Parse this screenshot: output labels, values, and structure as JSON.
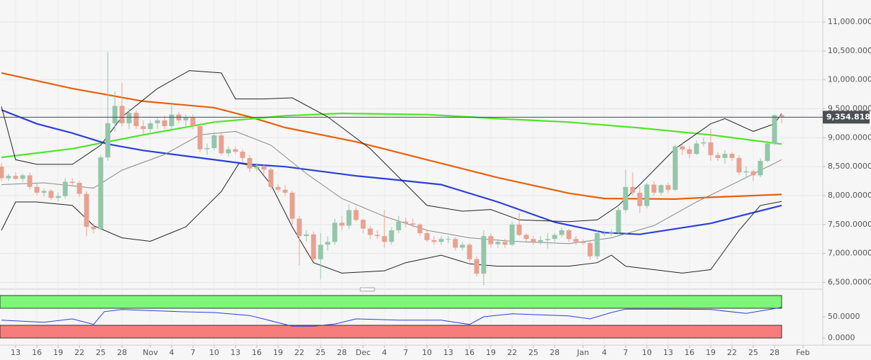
{
  "chart_data": {
    "type": "candlestick",
    "xlim": [
      -0.2,
      115.8
    ],
    "ylim": [
      6420,
      11380
    ],
    "yticks": [
      {
        "value": 6500,
        "label": "6,500.0000"
      },
      {
        "value": 7000,
        "label": "7,000.0000"
      },
      {
        "value": 7500,
        "label": "7,500.0000"
      },
      {
        "value": 8000,
        "label": "8,000.0000"
      },
      {
        "value": 8500,
        "label": "8,500.0000"
      },
      {
        "value": 9000,
        "label": "9,000.0000"
      },
      {
        "value": 9500,
        "label": "9,500.0000"
      },
      {
        "value": 10000,
        "label": "10,000.0000"
      },
      {
        "value": 10500,
        "label": "10,500.0000"
      },
      {
        "value": 11000,
        "label": "11,000.0000"
      }
    ],
    "xticks": [
      {
        "value": 2,
        "label": "13"
      },
      {
        "value": 5,
        "label": "16"
      },
      {
        "value": 8,
        "label": "19"
      },
      {
        "value": 11,
        "label": "22"
      },
      {
        "value": 14,
        "label": "25"
      },
      {
        "value": 17,
        "label": "28"
      },
      {
        "value": 21,
        "label": "Nov"
      },
      {
        "value": 24,
        "label": "4"
      },
      {
        "value": 27,
        "label": "7"
      },
      {
        "value": 30,
        "label": "10"
      },
      {
        "value": 33,
        "label": "13"
      },
      {
        "value": 36,
        "label": "16"
      },
      {
        "value": 39,
        "label": "19"
      },
      {
        "value": 42,
        "label": "22"
      },
      {
        "value": 45,
        "label": "25"
      },
      {
        "value": 48,
        "label": "28"
      },
      {
        "value": 51,
        "label": "Dec"
      },
      {
        "value": 54,
        "label": "4"
      },
      {
        "value": 57,
        "label": "7"
      },
      {
        "value": 60,
        "label": "10"
      },
      {
        "value": 63,
        "label": "13"
      },
      {
        "value": 66,
        "label": "16"
      },
      {
        "value": 69,
        "label": "19"
      },
      {
        "value": 72,
        "label": "22"
      },
      {
        "value": 75,
        "label": "25"
      },
      {
        "value": 78,
        "label": "28"
      },
      {
        "value": 82,
        "label": "Jan"
      },
      {
        "value": 85,
        "label": "4"
      },
      {
        "value": 88,
        "label": "7"
      },
      {
        "value": 91,
        "label": "10"
      },
      {
        "value": 94,
        "label": "13"
      },
      {
        "value": 97,
        "label": "16"
      },
      {
        "value": 100,
        "label": "19"
      },
      {
        "value": 103,
        "label": "22"
      },
      {
        "value": 106,
        "label": "25"
      },
      {
        "value": 109,
        "label": "28"
      },
      {
        "value": 113,
        "label": "Feb"
      }
    ],
    "up_color": "#93c6ab",
    "down_color": "#e8a190",
    "grid": true,
    "last_price": {
      "value": 9354.8185,
      "label": "9,354.8185"
    },
    "ohlc": [
      [
        8500,
        8560,
        8250,
        8300
      ],
      [
        8300,
        8380,
        8250,
        8340
      ],
      [
        8340,
        8400,
        8270,
        8290
      ],
      [
        8290,
        8380,
        8240,
        8350
      ],
      [
        8350,
        8400,
        8100,
        8150
      ],
      [
        8150,
        8200,
        8000,
        8050
      ],
      [
        8050,
        8120,
        7980,
        8080
      ],
      [
        8080,
        8110,
        7920,
        7960
      ],
      [
        7960,
        8050,
        7900,
        7990
      ],
      [
        7990,
        8300,
        7950,
        8240
      ],
      [
        8240,
        8300,
        8180,
        8220
      ],
      [
        8220,
        8250,
        7980,
        8030
      ],
      [
        8030,
        8080,
        7300,
        7460
      ],
      [
        7460,
        7520,
        7350,
        7420
      ],
      [
        7420,
        8700,
        7400,
        8660
      ],
      [
        8660,
        10480,
        8600,
        9250
      ],
      [
        9250,
        9800,
        9100,
        9550
      ],
      [
        9550,
        9950,
        9200,
        9250
      ],
      [
        9250,
        9500,
        9150,
        9430
      ],
      [
        9430,
        9470,
        9150,
        9200
      ],
      [
        9200,
        9300,
        9050,
        9150
      ],
      [
        9150,
        9300,
        9100,
        9250
      ],
      [
        9250,
        9350,
        9150,
        9300
      ],
      [
        9300,
        9380,
        9150,
        9200
      ],
      [
        9200,
        9560,
        9150,
        9400
      ],
      [
        9400,
        9450,
        9250,
        9300
      ],
      [
        9300,
        9400,
        9200,
        9350
      ],
      [
        9350,
        9400,
        9150,
        9200
      ],
      [
        9200,
        9250,
        8750,
        8800
      ],
      [
        8800,
        8900,
        8700,
        8820
      ],
      [
        8820,
        9100,
        8780,
        9040
      ],
      [
        9040,
        9100,
        8700,
        8730
      ],
      [
        8730,
        8850,
        8680,
        8800
      ],
      [
        8800,
        8850,
        8720,
        8760
      ],
      [
        8760,
        8800,
        8580,
        8650
      ],
      [
        8650,
        8700,
        8400,
        8470
      ],
      [
        8470,
        8560,
        8420,
        8500
      ],
      [
        8500,
        8530,
        8380,
        8450
      ],
      [
        8450,
        8480,
        8100,
        8150
      ],
      [
        8150,
        8200,
        8050,
        8100
      ],
      [
        8100,
        8180,
        8000,
        8050
      ],
      [
        8050,
        8080,
        7500,
        7600
      ],
      [
        7600,
        7650,
        6800,
        7300
      ],
      [
        7300,
        7400,
        7200,
        7330
      ],
      [
        7330,
        7380,
        6850,
        6900
      ],
      [
        6900,
        7350,
        6550,
        7150
      ],
      [
        7150,
        7300,
        7050,
        7200
      ],
      [
        7200,
        7600,
        7150,
        7530
      ],
      [
        7530,
        7650,
        7400,
        7480
      ],
      [
        7480,
        7850,
        7420,
        7750
      ],
      [
        7750,
        7800,
        7550,
        7580
      ],
      [
        7580,
        7600,
        7350,
        7430
      ],
      [
        7430,
        7480,
        7250,
        7320
      ],
      [
        7320,
        7400,
        7250,
        7300
      ],
      [
        7300,
        7750,
        7100,
        7200
      ],
      [
        7200,
        7450,
        7150,
        7400
      ],
      [
        7400,
        7650,
        7350,
        7550
      ],
      [
        7550,
        7620,
        7450,
        7520
      ],
      [
        7520,
        7600,
        7450,
        7500
      ],
      [
        7500,
        7520,
        7300,
        7350
      ],
      [
        7350,
        7400,
        7200,
        7230
      ],
      [
        7230,
        7300,
        7150,
        7200
      ],
      [
        7200,
        7300,
        7150,
        7250
      ],
      [
        7250,
        7300,
        7180,
        7250
      ],
      [
        7250,
        7280,
        7050,
        7100
      ],
      [
        7100,
        7200,
        7050,
        7150
      ],
      [
        7150,
        7180,
        6850,
        6900
      ],
      [
        6900,
        6950,
        6600,
        6650
      ],
      [
        6650,
        7400,
        6450,
        7300
      ],
      [
        7300,
        7350,
        7100,
        7160
      ],
      [
        7160,
        7250,
        7100,
        7200
      ],
      [
        7200,
        7250,
        7100,
        7150
      ],
      [
        7150,
        7550,
        7130,
        7500
      ],
      [
        7500,
        7700,
        7300,
        7320
      ],
      [
        7320,
        7350,
        7200,
        7250
      ],
      [
        7250,
        7300,
        7150,
        7200
      ],
      [
        7200,
        7300,
        7150,
        7230
      ],
      [
        7230,
        7350,
        7080,
        7250
      ],
      [
        7250,
        7350,
        7200,
        7320
      ],
      [
        7320,
        7450,
        7280,
        7400
      ],
      [
        7400,
        7420,
        7200,
        7250
      ],
      [
        7250,
        7300,
        7150,
        7200
      ],
      [
        7200,
        7250,
        7150,
        7180
      ],
      [
        7180,
        7220,
        6900,
        6950
      ],
      [
        6950,
        7400,
        6900,
        7350
      ],
      [
        7350,
        7400,
        7300,
        7350
      ],
      [
        7350,
        7420,
        7300,
        7360
      ],
      [
        7360,
        7800,
        7330,
        7750
      ],
      [
        7750,
        8450,
        7700,
        8150
      ],
      [
        8150,
        8400,
        8000,
        8050
      ],
      [
        8050,
        8150,
        7700,
        7820
      ],
      [
        7820,
        8220,
        7780,
        8190
      ],
      [
        8190,
        8250,
        8000,
        8050
      ],
      [
        8050,
        8200,
        8000,
        8180
      ],
      [
        8180,
        8220,
        8050,
        8100
      ],
      [
        8100,
        8880,
        8080,
        8850
      ],
      [
        8850,
        8900,
        8700,
        8800
      ],
      [
        8800,
        8850,
        8650,
        8720
      ],
      [
        8720,
        8950,
        8700,
        8900
      ],
      [
        8900,
        9000,
        8850,
        8920
      ],
      [
        8920,
        9150,
        8600,
        8700
      ],
      [
        8700,
        8750,
        8600,
        8650
      ],
      [
        8650,
        8780,
        8550,
        8720
      ],
      [
        8720,
        8750,
        8600,
        8650
      ],
      [
        8650,
        8700,
        8350,
        8400
      ],
      [
        8400,
        8500,
        8300,
        8420
      ],
      [
        8420,
        8450,
        8250,
        8350
      ],
      [
        8350,
        8650,
        8320,
        8600
      ],
      [
        8600,
        8950,
        8580,
        8900
      ],
      [
        8900,
        9400,
        8870,
        9390
      ],
      [
        9390,
        9420,
        9250,
        9354.8185
      ]
    ],
    "lines": [
      {
        "color": "#e8600c",
        "width": 2.2,
        "x": [
          0,
          10,
          20,
          30,
          35,
          40,
          50,
          60,
          70,
          80,
          85,
          95,
          100,
          110
        ],
        "values": [
          10120,
          9850,
          9630,
          9520,
          9360,
          9175,
          8930,
          8620,
          8310,
          8040,
          7950,
          7940,
          7970,
          8020
        ]
      },
      {
        "color": "#4ee52a",
        "width": 2.2,
        "x": [
          0,
          10,
          20,
          30,
          40,
          48,
          60,
          70,
          80,
          90,
          100,
          110
        ],
        "values": [
          8660,
          8810,
          9050,
          9270,
          9380,
          9420,
          9400,
          9330,
          9270,
          9170,
          9050,
          8890
        ]
      },
      {
        "color": "#2a3fd8",
        "width": 2.2,
        "x": [
          0,
          5,
          10,
          15,
          20,
          30,
          35,
          40,
          50,
          55,
          62,
          70,
          78,
          85,
          90,
          100,
          110
        ],
        "values": [
          9480,
          9240,
          9080,
          8890,
          8780,
          8620,
          8540,
          8500,
          8340,
          8280,
          8190,
          7890,
          7540,
          7360,
          7330,
          7520,
          7830
        ]
      },
      {
        "color": "#222222",
        "width": 1,
        "x": [
          0,
          2,
          5,
          10,
          14,
          17,
          22,
          26.5,
          31,
          33,
          37,
          41,
          46,
          52,
          56,
          60,
          65,
          69,
          73,
          80,
          84,
          87,
          90,
          95,
          100,
          102,
          106,
          109,
          110
        ],
        "values": [
          9540,
          8620,
          8540,
          8540,
          8870,
          9360,
          9850,
          10160,
          10120,
          9670,
          9670,
          9690,
          9360,
          8810,
          8320,
          7830,
          7730,
          7760,
          7580,
          7550,
          7580,
          7830,
          8190,
          8810,
          9240,
          9330,
          9110,
          9240,
          9420
        ]
      },
      {
        "color": "#222222",
        "width": 1,
        "x": [
          0,
          2,
          5,
          10,
          13,
          17,
          21,
          26,
          31,
          33.5,
          36,
          38,
          41,
          44,
          48,
          54,
          57,
          62,
          66,
          70,
          80,
          84,
          86,
          88,
          92,
          96,
          100,
          104,
          107,
          110
        ],
        "values": [
          7400,
          7890,
          7890,
          7830,
          7480,
          7270,
          7210,
          7460,
          8070,
          8560,
          8500,
          8190,
          7460,
          6840,
          6660,
          6700,
          6840,
          6970,
          6820,
          6780,
          6780,
          6840,
          6970,
          6780,
          6720,
          6660,
          6720,
          7400,
          7830,
          7900
        ]
      },
      {
        "color": "#888888",
        "width": 1,
        "x": [
          0,
          6,
          13,
          17,
          23,
          28,
          33,
          38,
          43,
          48,
          54,
          60,
          66,
          72,
          80,
          86,
          92,
          98,
          104,
          110
        ],
        "values": [
          8190,
          8220,
          8130,
          8440,
          8710,
          9050,
          9110,
          8870,
          8380,
          7950,
          7640,
          7400,
          7270,
          7210,
          7170,
          7270,
          7480,
          7890,
          8250,
          8620
        ]
      }
    ],
    "rsi": {
      "ylim": [
        0,
        100
      ],
      "yticks": [
        {
          "value": 50,
          "label": "50.0000"
        },
        {
          "value": 0,
          "label": "0.0000"
        }
      ],
      "bands": [
        {
          "range": [
            70,
            100
          ],
          "color": "#7ff57a"
        },
        {
          "range": [
            0,
            30
          ],
          "color": "#f77d7d"
        }
      ],
      "color": "#2a3fd8",
      "x": [
        0,
        6,
        10,
        13,
        14.5,
        17,
        25,
        30,
        35,
        41,
        44,
        47,
        50,
        56,
        62,
        66,
        68,
        72,
        80,
        83,
        86,
        88,
        95,
        100,
        105,
        110
      ],
      "values": [
        42,
        37,
        45,
        32,
        62,
        67,
        62,
        60,
        53,
        28,
        28,
        33,
        45,
        42,
        42,
        32,
        50,
        57,
        52,
        45,
        60,
        68,
        68,
        67,
        58,
        72
      ]
    }
  }
}
